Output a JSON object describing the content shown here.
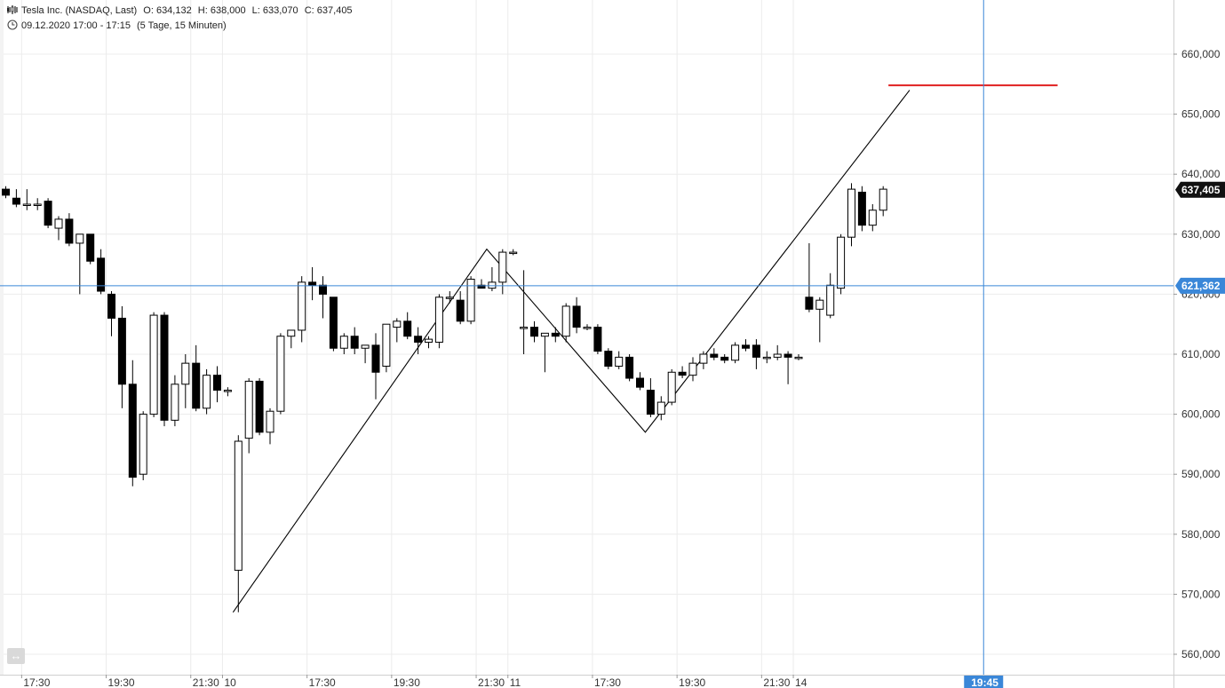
{
  "header": {
    "instrument": "Tesla Inc. (NASDAQ, Last)",
    "open": "O: 634,132",
    "high": "H: 638,000",
    "low": "L: 633,070",
    "close": "C: 637,405",
    "period": "09.12.2020 17:00 - 17:15",
    "interval": "(5 Tage, 15 Minuten)"
  },
  "colors": {
    "up": "#ffffff",
    "down": "#000000",
    "crosshair": "#3a87d8",
    "target_line": "#e02020",
    "grid": "#ececec"
  },
  "chart_data": {
    "type": "candlestick",
    "title": "Tesla Inc. (NASDAQ, Last)",
    "ylim": [
      555,
      668
    ],
    "y_ticks": [
      "660,000",
      "650,000",
      "640,000",
      "630,000",
      "620,000",
      "610,000",
      "600,000",
      "590,000",
      "580,000",
      "570,000",
      "560,000"
    ],
    "y_tick_values": [
      660,
      650,
      640,
      630,
      620,
      610,
      600,
      590,
      580,
      570,
      560
    ],
    "x_labels": [
      {
        "i": 1.5,
        "label": "17:30"
      },
      {
        "i": 9.5,
        "label": "19:30"
      },
      {
        "i": 17.5,
        "label": "21:30"
      },
      {
        "i": 20.5,
        "label": "10"
      },
      {
        "i": 28.5,
        "label": "17:30"
      },
      {
        "i": 36.5,
        "label": "19:30"
      },
      {
        "i": 44.5,
        "label": "21:30"
      },
      {
        "i": 47.5,
        "label": "11"
      },
      {
        "i": 55.5,
        "label": "17:30"
      },
      {
        "i": 63.5,
        "label": "19:30"
      },
      {
        "i": 71.5,
        "label": "21:30"
      },
      {
        "i": 74.5,
        "label": "14"
      }
    ],
    "candles": [
      [
        637.5,
        638.0,
        636.0,
        636.5
      ],
      [
        636.0,
        637.5,
        634.5,
        635.0
      ],
      [
        635.0,
        637.5,
        634.0,
        635.0
      ],
      [
        635.0,
        636.0,
        634.0,
        635.0
      ],
      [
        635.5,
        636.0,
        631.0,
        631.5
      ],
      [
        631.0,
        633.0,
        629.0,
        632.5
      ],
      [
        632.5,
        633.5,
        628.0,
        628.5
      ],
      [
        628.5,
        630.0,
        620.0,
        630.0
      ],
      [
        630.0,
        630.0,
        625.0,
        625.5
      ],
      [
        626.0,
        627.5,
        620.0,
        620.5
      ],
      [
        620.0,
        620.5,
        613.0,
        616.0
      ],
      [
        616.0,
        618.0,
        601.0,
        605.0
      ],
      [
        605.0,
        609.0,
        588.0,
        589.5
      ],
      [
        590.0,
        600.5,
        589.0,
        600.0
      ],
      [
        600.0,
        617.0,
        599.5,
        616.5
      ],
      [
        616.5,
        617.0,
        598.0,
        599.0
      ],
      [
        599.0,
        606.5,
        598.0,
        605.0
      ],
      [
        605.0,
        610.0,
        601.0,
        608.5
      ],
      [
        608.5,
        611.5,
        600.5,
        601.0
      ],
      [
        601.0,
        607.5,
        600.0,
        606.5
      ],
      [
        606.5,
        608.0,
        602.0,
        604.0
      ],
      [
        604.0,
        604.5,
        603.0,
        604.0
      ],
      [
        574.0,
        596.5,
        567.0,
        595.5
      ],
      [
        596.0,
        606.0,
        593.5,
        605.5
      ],
      [
        605.5,
        606.0,
        596.5,
        597.0
      ],
      [
        597.0,
        601.0,
        595.0,
        600.5
      ],
      [
        600.5,
        613.5,
        600.0,
        613.0
      ],
      [
        613.0,
        614.0,
        611.0,
        614.0
      ],
      [
        614.0,
        623.0,
        612.0,
        622.0
      ],
      [
        622.0,
        624.5,
        619.0,
        621.5
      ],
      [
        621.5,
        623.0,
        616.0,
        620.0
      ],
      [
        619.5,
        619.5,
        610.5,
        611.0
      ],
      [
        611.0,
        613.5,
        610.0,
        613.0
      ],
      [
        613.0,
        614.5,
        610.0,
        611.0
      ],
      [
        611.0,
        611.5,
        608.5,
        611.5
      ],
      [
        611.5,
        613.5,
        602.5,
        607.0
      ],
      [
        608.0,
        615.0,
        607.0,
        615.0
      ],
      [
        614.5,
        616.0,
        612.0,
        615.5
      ],
      [
        615.5,
        617.0,
        612.5,
        613.0
      ],
      [
        613.0,
        614.5,
        610.0,
        612.0
      ],
      [
        612.0,
        613.0,
        611.0,
        612.5
      ],
      [
        612.0,
        620.0,
        611.0,
        619.5
      ],
      [
        619.5,
        620.5,
        618.5,
        619.5
      ],
      [
        619.0,
        620.5,
        615.0,
        615.5
      ],
      [
        615.5,
        623.0,
        615.0,
        622.5
      ],
      [
        621.5,
        622.5,
        621.0,
        621.0
      ],
      [
        621.0,
        624.5,
        620.5,
        622.0
      ],
      [
        622.0,
        627.5,
        620.0,
        627.0
      ],
      [
        627.0,
        627.5,
        626.5,
        627.0
      ],
      [
        614.5,
        624.0,
        610.0,
        614.5
      ],
      [
        614.5,
        615.5,
        612.0,
        613.0
      ],
      [
        613.0,
        613.5,
        607.0,
        613.5
      ],
      [
        613.5,
        614.5,
        612.0,
        613.0
      ],
      [
        613.0,
        618.5,
        612.0,
        618.0
      ],
      [
        618.0,
        619.5,
        613.5,
        614.5
      ],
      [
        614.5,
        615.0,
        614.0,
        614.5
      ],
      [
        614.5,
        615.0,
        610.0,
        610.5
      ],
      [
        610.5,
        611.0,
        607.5,
        608.0
      ],
      [
        608.0,
        610.5,
        607.5,
        609.5
      ],
      [
        609.5,
        610.0,
        605.5,
        606.0
      ],
      [
        606.0,
        607.0,
        604.0,
        604.5
      ],
      [
        604.0,
        606.0,
        599.5,
        600.0
      ],
      [
        600.0,
        603.0,
        599.0,
        602.0
      ],
      [
        602.0,
        607.5,
        601.5,
        607.0
      ],
      [
        607.0,
        608.0,
        606.0,
        606.5
      ],
      [
        606.5,
        609.5,
        605.5,
        608.5
      ],
      [
        608.5,
        610.5,
        607.5,
        610.0
      ],
      [
        610.0,
        611.0,
        609.0,
        609.5
      ],
      [
        609.5,
        610.0,
        608.5,
        609.0
      ],
      [
        609.0,
        612.0,
        608.5,
        611.5
      ],
      [
        611.5,
        612.5,
        610.5,
        611.0
      ],
      [
        611.5,
        612.5,
        607.5,
        609.5
      ],
      [
        609.5,
        610.5,
        608.5,
        609.5
      ],
      [
        609.5,
        611.5,
        609.0,
        610.0
      ],
      [
        610.0,
        610.5,
        605.0,
        609.5
      ],
      [
        609.5,
        610.0,
        609.0,
        609.5
      ],
      [
        619.5,
        628.5,
        617.0,
        617.5
      ],
      [
        617.5,
        619.5,
        612.0,
        619.0
      ],
      [
        616.5,
        623.5,
        616.0,
        621.5
      ],
      [
        621.0,
        630.0,
        620.0,
        629.5
      ],
      [
        629.5,
        638.5,
        628.0,
        637.5
      ],
      [
        637.0,
        638.0,
        630.5,
        631.5
      ],
      [
        631.5,
        635.0,
        630.5,
        634.0
      ],
      [
        634.0,
        638.0,
        633.0,
        637.5
      ]
    ],
    "pattern_line": [
      [
        21.5,
        567.0
      ],
      [
        45.5,
        627.5
      ],
      [
        60.5,
        597.0
      ],
      [
        85.5,
        654.0
      ]
    ],
    "target_level": {
      "value": 654.8,
      "from_i": 83.5,
      "to_i": 99.5
    },
    "crosshair": {
      "price": 621.4,
      "price_label": "621,362",
      "time_i": 92.5,
      "time_label": "19:45"
    },
    "last_price": {
      "price": 637.4,
      "label": "637,405"
    }
  }
}
